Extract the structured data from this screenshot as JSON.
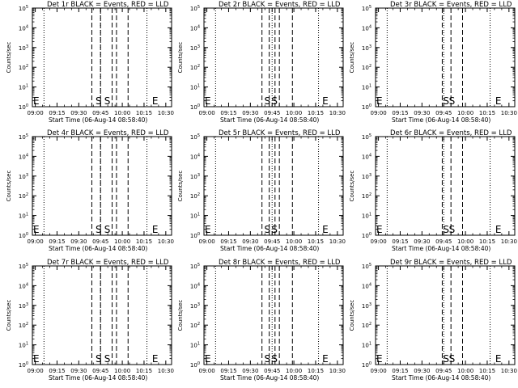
{
  "page": {
    "background": "#ffffff",
    "colors": {
      "events": "#000000",
      "lld": "#ff0000"
    }
  },
  "shared": {
    "ylabel": "Counts/sec",
    "xlabel": "Start Time (06-Aug-14 08:58:40)",
    "x_ticks": [
      "09:00",
      "09:15",
      "09:30",
      "09:45",
      "10:00",
      "10:15",
      "10:30"
    ],
    "y_ticks": [
      {
        "base": "10",
        "exp": "0"
      },
      {
        "base": "10",
        "exp": "1"
      },
      {
        "base": "10",
        "exp": "2"
      },
      {
        "base": "10",
        "exp": "3"
      },
      {
        "base": "10",
        "exp": "4"
      },
      {
        "base": "10",
        "exp": "5"
      }
    ]
  },
  "chart_data": [
    {
      "type": "line",
      "title": "Det 1r BLACK = Events, RED = LLD",
      "xlabel": "Start Time (06-Aug-14 08:58:40)",
      "ylabel": "Counts/sec",
      "y_scale": "log",
      "ylim": [
        1,
        100000
      ],
      "xlim_minutes": [
        0,
        96
      ],
      "dotted_lines_min": [
        8,
        47,
        79
      ],
      "dashed_lines_min": [
        41,
        47,
        55,
        58,
        66
      ],
      "markers": [
        {
          "label": "E",
          "x_min": 0
        },
        {
          "label": "S",
          "x_min": 43
        },
        {
          "label": "S",
          "x_min": 49
        },
        {
          "label": "E",
          "x_min": 82
        }
      ]
    },
    {
      "type": "line",
      "title": "Det 2r BLACK = Events, RED = LLD",
      "xlabel": "Start Time (06-Aug-14 08:58:40)",
      "ylabel": "Counts/sec",
      "y_scale": "log",
      "ylim": [
        1,
        100000
      ],
      "xlim_minutes": [
        0,
        96
      ],
      "dotted_lines_min": [
        8,
        47,
        79
      ],
      "dashed_lines_min": [
        40,
        45,
        49,
        52,
        61
      ],
      "markers": [
        {
          "label": "E",
          "x_min": 0
        },
        {
          "label": "S",
          "x_min": 41
        },
        {
          "label": "S",
          "x_min": 46
        },
        {
          "label": "E",
          "x_min": 81
        }
      ]
    },
    {
      "type": "line",
      "title": "Det 3r BLACK = Events, RED = LLD",
      "xlabel": "Start Time (06-Aug-14 08:58:40)",
      "ylabel": "Counts/sec",
      "y_scale": "log",
      "ylim": [
        1,
        100000
      ],
      "xlim_minutes": [
        0,
        96
      ],
      "dotted_lines_min": [
        8,
        47,
        79
      ],
      "dashed_lines_min": [
        46,
        52,
        60
      ],
      "markers": [
        {
          "label": "E",
          "x_min": 0
        },
        {
          "label": "S",
          "x_min": 46
        },
        {
          "label": "S",
          "x_min": 50
        },
        {
          "label": "E",
          "x_min": 82
        }
      ]
    },
    {
      "type": "line",
      "title": "Det 4r BLACK = Events, RED = LLD",
      "xlabel": "Start Time (06-Aug-14 08:58:40)",
      "ylabel": "Counts/sec",
      "y_scale": "log",
      "ylim": [
        1,
        100000
      ],
      "xlim_minutes": [
        0,
        96
      ],
      "dotted_lines_min": [
        8,
        47,
        79
      ],
      "dashed_lines_min": [
        41,
        47,
        55,
        58,
        66
      ],
      "markers": [
        {
          "label": "E",
          "x_min": 0
        },
        {
          "label": "S",
          "x_min": 43
        },
        {
          "label": "S",
          "x_min": 49
        },
        {
          "label": "E",
          "x_min": 82
        }
      ]
    },
    {
      "type": "line",
      "title": "Det 5r BLACK = Events, RED = LLD",
      "xlabel": "Start Time (06-Aug-14 08:58:40)",
      "ylabel": "Counts/sec",
      "y_scale": "log",
      "ylim": [
        1,
        100000
      ],
      "xlim_minutes": [
        0,
        96
      ],
      "dotted_lines_min": [
        8,
        47,
        79
      ],
      "dashed_lines_min": [
        40,
        45,
        49,
        52,
        61
      ],
      "markers": [
        {
          "label": "E",
          "x_min": 0
        },
        {
          "label": "S",
          "x_min": 41
        },
        {
          "label": "S",
          "x_min": 46
        },
        {
          "label": "E",
          "x_min": 81
        }
      ]
    },
    {
      "type": "line",
      "title": "Det 6r BLACK = Events, RED = LLD",
      "xlabel": "Start Time (06-Aug-14 08:58:40)",
      "ylabel": "Counts/sec",
      "y_scale": "log",
      "ylim": [
        1,
        100000
      ],
      "xlim_minutes": [
        0,
        96
      ],
      "dotted_lines_min": [
        8,
        47,
        79
      ],
      "dashed_lines_min": [
        46,
        52,
        60
      ],
      "markers": [
        {
          "label": "E",
          "x_min": 0
        },
        {
          "label": "S",
          "x_min": 46
        },
        {
          "label": "S",
          "x_min": 50
        },
        {
          "label": "E",
          "x_min": 82
        }
      ]
    },
    {
      "type": "line",
      "title": "Det 7r BLACK = Events, RED = LLD",
      "xlabel": "Start Time (06-Aug-14 08:58:40)",
      "ylabel": "Counts/sec",
      "y_scale": "log",
      "ylim": [
        1,
        100000
      ],
      "xlim_minutes": [
        0,
        96
      ],
      "dotted_lines_min": [
        8,
        47,
        79
      ],
      "dashed_lines_min": [
        41,
        47,
        55,
        58,
        66
      ],
      "markers": [
        {
          "label": "E",
          "x_min": 0
        },
        {
          "label": "S",
          "x_min": 43
        },
        {
          "label": "S",
          "x_min": 49
        },
        {
          "label": "E",
          "x_min": 82
        }
      ]
    },
    {
      "type": "line",
      "title": "Det 8r BLACK = Events, RED = LLD",
      "xlabel": "Start Time (06-Aug-14 08:58:40)",
      "ylabel": "Counts/sec",
      "y_scale": "log",
      "ylim": [
        1,
        100000
      ],
      "xlim_minutes": [
        0,
        96
      ],
      "dotted_lines_min": [
        8,
        47,
        79
      ],
      "dashed_lines_min": [
        40,
        45,
        49,
        52,
        61
      ],
      "markers": [
        {
          "label": "E",
          "x_min": 0
        },
        {
          "label": "S",
          "x_min": 41
        },
        {
          "label": "S",
          "x_min": 46
        },
        {
          "label": "E",
          "x_min": 81
        }
      ]
    },
    {
      "type": "line",
      "title": "Det 9r BLACK = Events, RED = LLD",
      "xlabel": "Start Time (06-Aug-14 08:58:40)",
      "ylabel": "Counts/sec",
      "y_scale": "log",
      "ylim": [
        1,
        100000
      ],
      "xlim_minutes": [
        0,
        96
      ],
      "dotted_lines_min": [
        8,
        47,
        79
      ],
      "dashed_lines_min": [
        46,
        52,
        60
      ],
      "markers": [
        {
          "label": "E",
          "x_min": 0
        },
        {
          "label": "S",
          "x_min": 46
        },
        {
          "label": "S",
          "x_min": 50
        },
        {
          "label": "E",
          "x_min": 82
        }
      ]
    }
  ]
}
